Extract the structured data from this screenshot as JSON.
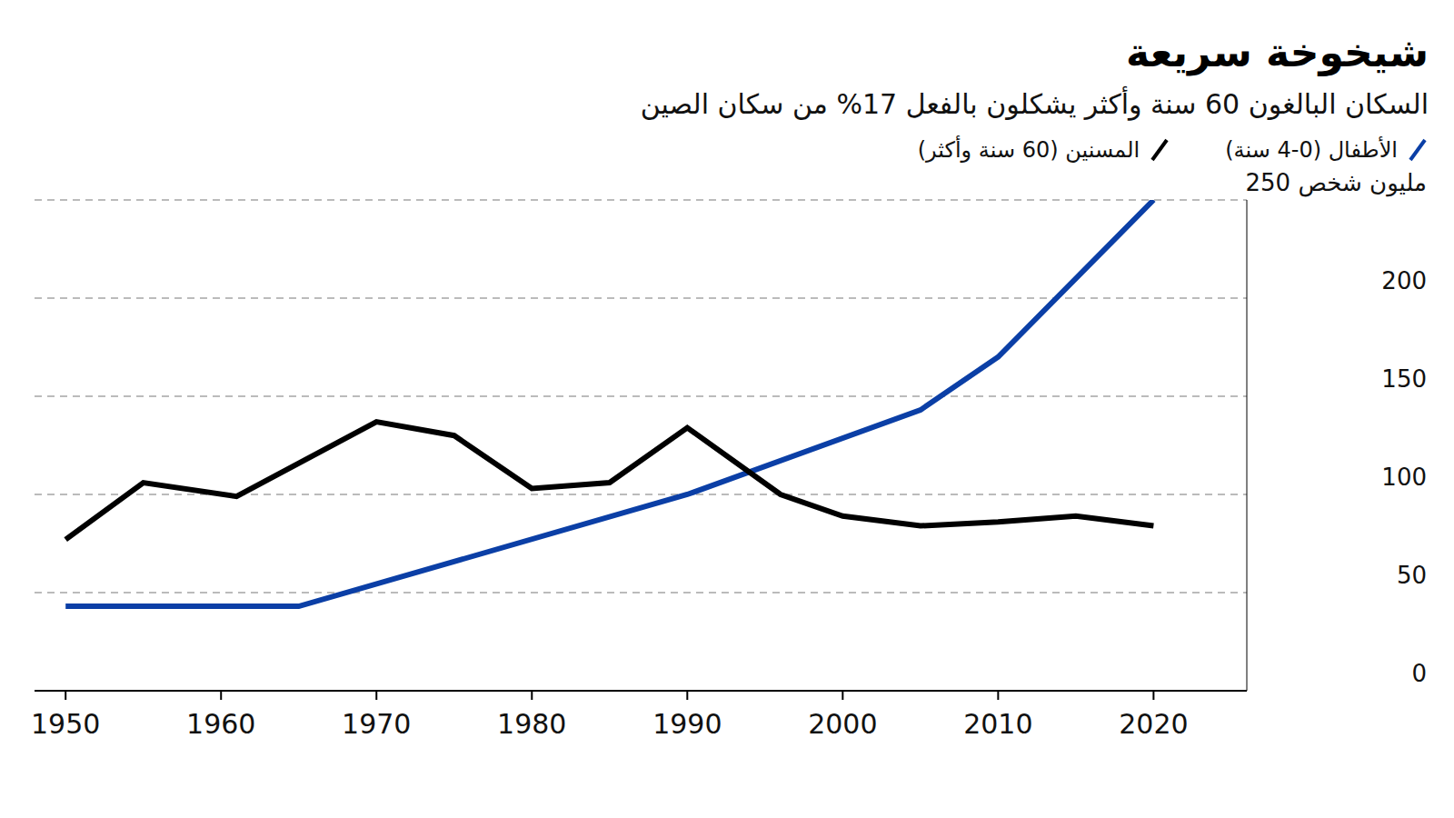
{
  "chart_data": {
    "type": "line",
    "title": "شيخوخة سريعة",
    "subtitle": "السكان البالغون 60 سنة وأكثر يشكلون بالفعل 17% من سكان الصين",
    "xlim": [
      1948,
      2026
    ],
    "xticks": [
      1950,
      1960,
      1970,
      1980,
      1990,
      2000,
      2010,
      2020
    ],
    "ylim": [
      0,
      250
    ],
    "yticks": [
      0,
      50,
      100,
      150,
      200,
      {
        "value": 250,
        "label": "250 مليون شخص"
      }
    ],
    "grid": true,
    "legend": "top",
    "series": [
      {
        "name": "الأطفال (0-4 سنة)",
        "color": "#0b3fa6",
        "x": [
          1950,
          1965,
          1990,
          2005,
          2010,
          2020
        ],
        "values": [
          43,
          43,
          100,
          143,
          170,
          250
        ]
      },
      {
        "name": "المسنين (60 سنة وأكثر)",
        "color": "#000000",
        "x": [
          1950,
          1955,
          1961,
          1970,
          1975,
          1980,
          1985,
          1990,
          1996,
          2000,
          2005,
          2010,
          2015,
          2020
        ],
        "values": [
          77,
          106,
          99,
          137,
          130,
          103,
          106,
          134,
          100,
          89,
          84,
          86,
          89,
          84
        ]
      }
    ]
  }
}
